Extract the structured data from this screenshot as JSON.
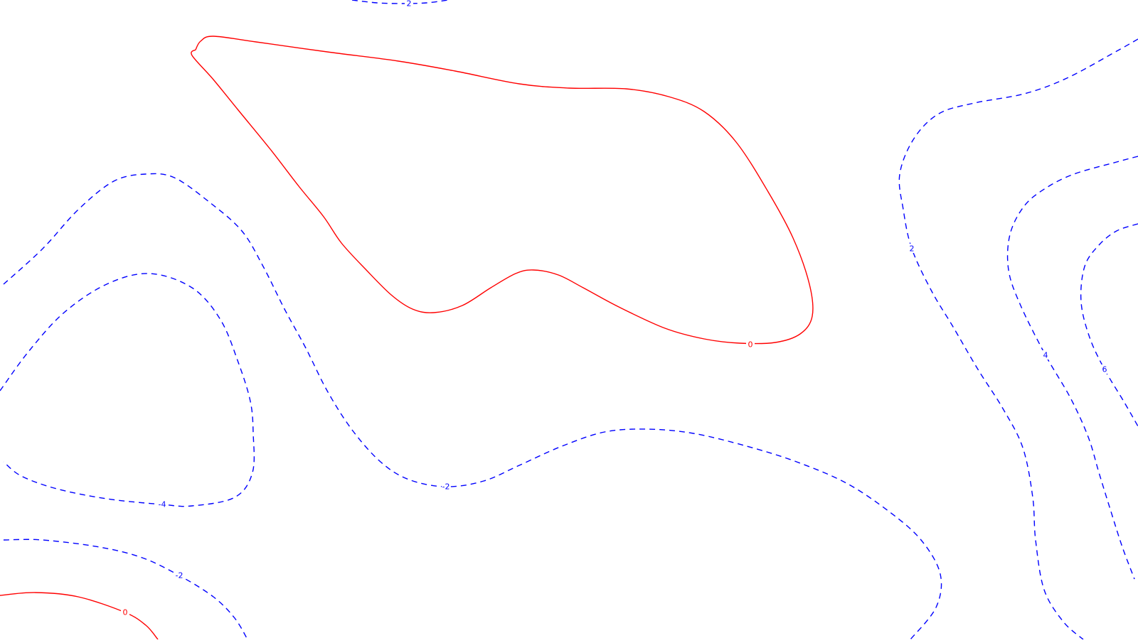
{
  "chart_data": {
    "type": "contour",
    "title": "",
    "xlabel": "",
    "ylabel": "",
    "legend": "none",
    "grid": false,
    "colors": {
      "zero": "#ff0000",
      "negative": "#0000ff"
    },
    "levels": [
      {
        "id": "top-edge-2",
        "level": 2,
        "label": "2",
        "color": "#0000ff",
        "dashed": true,
        "label_at": [
          575,
          5
        ],
        "points": [
          [
            495,
            0
          ],
          [
            530,
            4
          ],
          [
            565,
            5
          ],
          [
            600,
            4
          ],
          [
            630,
            0
          ]
        ]
      },
      {
        "id": "central-zero",
        "level": 0,
        "label": "0",
        "color": "#ff0000",
        "dashed": false,
        "label_at": [
          1055,
          485
        ],
        "points": [
          [
            275,
            70
          ],
          [
            282,
            58
          ],
          [
            300,
            51
          ],
          [
            360,
            59
          ],
          [
            460,
            73
          ],
          [
            560,
            86
          ],
          [
            640,
            100
          ],
          [
            730,
            118
          ],
          [
            800,
            124
          ],
          [
            880,
            125
          ],
          [
            940,
            136
          ],
          [
            990,
            157
          ],
          [
            1035,
            200
          ],
          [
            1080,
            270
          ],
          [
            1115,
            335
          ],
          [
            1138,
            400
          ],
          [
            1142,
            445
          ],
          [
            1125,
            470
          ],
          [
            1090,
            482
          ],
          [
            1040,
            483
          ],
          [
            990,
            477
          ],
          [
            935,
            462
          ],
          [
            870,
            432
          ],
          [
            820,
            405
          ],
          [
            785,
            387
          ],
          [
            750,
            380
          ],
          [
            725,
            385
          ],
          [
            690,
            405
          ],
          [
            650,
            430
          ],
          [
            610,
            440
          ],
          [
            580,
            435
          ],
          [
            550,
            415
          ],
          [
            515,
            380
          ],
          [
            480,
            342
          ],
          [
            455,
            305
          ],
          [
            420,
            262
          ],
          [
            380,
            210
          ],
          [
            335,
            155
          ],
          [
            300,
            112
          ],
          [
            270,
            78
          ],
          [
            275,
            70
          ]
        ]
      },
      {
        "id": "left-outer-2",
        "level": -2,
        "label": "-2",
        "color": "#0000ff",
        "dashed": true,
        "label_at": [
          627,
          685
        ],
        "points": [
          [
            5,
            400
          ],
          [
            60,
            350
          ],
          [
            110,
            295
          ],
          [
            160,
            255
          ],
          [
            205,
            245
          ],
          [
            245,
            250
          ],
          [
            295,
            285
          ],
          [
            340,
            325
          ],
          [
            370,
            375
          ],
          [
            400,
            435
          ],
          [
            430,
            490
          ],
          [
            460,
            550
          ],
          [
            495,
            605
          ],
          [
            535,
            650
          ],
          [
            575,
            675
          ],
          [
            627,
            685
          ],
          [
            680,
            677
          ],
          [
            730,
            655
          ],
          [
            790,
            628
          ],
          [
            850,
            608
          ],
          [
            910,
            604
          ],
          [
            975,
            610
          ],
          [
            1050,
            628
          ],
          [
            1120,
            650
          ],
          [
            1190,
            680
          ],
          [
            1250,
            720
          ],
          [
            1295,
            760
          ],
          [
            1322,
            808
          ],
          [
            1316,
            855
          ],
          [
            1280,
            900
          ]
        ]
      },
      {
        "id": "left-inner-4",
        "level": -4,
        "label": "-4",
        "color": "#0000ff",
        "dashed": true,
        "label_at": [
          228,
          710
        ],
        "points": [
          [
            0,
            550
          ],
          [
            40,
            495
          ],
          [
            90,
            440
          ],
          [
            150,
            400
          ],
          [
            210,
            385
          ],
          [
            270,
            405
          ],
          [
            310,
            450
          ],
          [
            335,
            510
          ],
          [
            352,
            565
          ],
          [
            356,
            610
          ],
          [
            355,
            665
          ],
          [
            330,
            700
          ],
          [
            270,
            712
          ],
          [
            228,
            710
          ],
          [
            150,
            702
          ],
          [
            80,
            688
          ],
          [
            30,
            670
          ],
          [
            5,
            650
          ]
        ]
      },
      {
        "id": "bottom-left-2",
        "level": -2,
        "label": "-2",
        "color": "#0000ff",
        "dashed": true,
        "label_at": [
          252,
          810
        ],
        "points": [
          [
            5,
            760
          ],
          [
            60,
            760
          ],
          [
            140,
            770
          ],
          [
            200,
            785
          ],
          [
            252,
            810
          ],
          [
            300,
            840
          ],
          [
            330,
            870
          ],
          [
            348,
            900
          ]
        ]
      },
      {
        "id": "bottom-left-zero",
        "level": 0,
        "label": "0",
        "color": "#ff0000",
        "dashed": false,
        "label_at": [
          176,
          862
        ],
        "points": [
          [
            0,
            838
          ],
          [
            50,
            834
          ],
          [
            110,
            840
          ],
          [
            176,
            862
          ],
          [
            205,
            880
          ],
          [
            222,
            900
          ]
        ]
      },
      {
        "id": "right-2",
        "level": 2,
        "label": "2",
        "color": "#0000ff",
        "dashed": true,
        "label_at": [
          1282,
          350
        ],
        "points": [
          [
            1600,
            55
          ],
          [
            1570,
            72
          ],
          [
            1500,
            110
          ],
          [
            1440,
            132
          ],
          [
            1370,
            145
          ],
          [
            1320,
            160
          ],
          [
            1285,
            195
          ],
          [
            1265,
            245
          ],
          [
            1270,
            295
          ],
          [
            1282,
            350
          ],
          [
            1310,
            410
          ],
          [
            1340,
            460
          ],
          [
            1375,
            520
          ],
          [
            1410,
            575
          ],
          [
            1438,
            630
          ],
          [
            1452,
            700
          ],
          [
            1456,
            760
          ],
          [
            1468,
            830
          ],
          [
            1495,
            875
          ],
          [
            1523,
            900
          ]
        ]
      },
      {
        "id": "right-4",
        "level": 4,
        "label": "4",
        "color": "#0000ff",
        "dashed": true,
        "label_at": [
          1470,
          500
        ],
        "points": [
          [
            1600,
            220
          ],
          [
            1570,
            228
          ],
          [
            1510,
            245
          ],
          [
            1470,
            265
          ],
          [
            1440,
            290
          ],
          [
            1420,
            330
          ],
          [
            1418,
            380
          ],
          [
            1435,
            430
          ],
          [
            1470,
            500
          ],
          [
            1505,
            560
          ],
          [
            1530,
            615
          ],
          [
            1545,
            665
          ],
          [
            1562,
            720
          ],
          [
            1578,
            770
          ],
          [
            1595,
            815
          ]
        ]
      },
      {
        "id": "right-6",
        "level": 6,
        "label": "6",
        "color": "#0000ff",
        "dashed": true,
        "label_at": [
          1553,
          520
        ],
        "points": [
          [
            1600,
            315
          ],
          [
            1570,
            325
          ],
          [
            1545,
            345
          ],
          [
            1525,
            375
          ],
          [
            1520,
            425
          ],
          [
            1532,
            475
          ],
          [
            1553,
            520
          ],
          [
            1580,
            565
          ],
          [
            1600,
            600
          ]
        ]
      }
    ]
  }
}
